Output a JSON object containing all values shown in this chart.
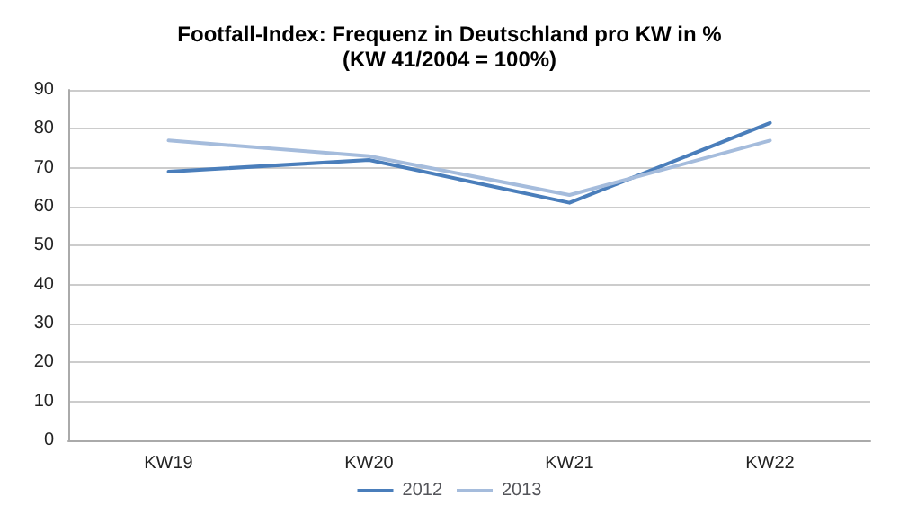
{
  "chart_data": {
    "type": "line",
    "title": "Footfall-Index: Frequenz in Deutschland pro KW in %",
    "subtitle": "(KW 41/2004 = 100%)",
    "categories": [
      "KW19",
      "KW20",
      "KW21",
      "KW22"
    ],
    "series": [
      {
        "name": "2012",
        "color": "#4a7ebb",
        "values": [
          69,
          72,
          61,
          81.5
        ]
      },
      {
        "name": "2013",
        "color": "#a5bcdc",
        "values": [
          77,
          73,
          63,
          77
        ]
      }
    ],
    "ylim": [
      0,
      90
    ],
    "yticks": [
      0,
      10,
      20,
      30,
      40,
      50,
      60,
      70,
      80,
      90
    ],
    "grid": "y",
    "legend": "bottom",
    "marker": "none",
    "line_style": "solid"
  }
}
